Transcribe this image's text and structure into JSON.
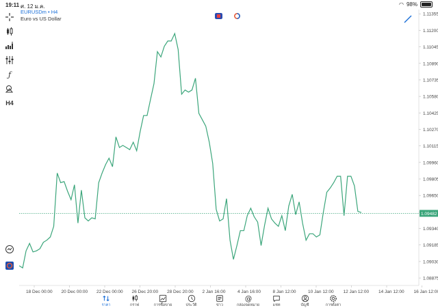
{
  "status_bar": {
    "time": "19:11",
    "date": "ศ. 12 ม.ค.",
    "battery": "98%"
  },
  "symbol": {
    "name": "EURUSDm",
    "timeframe": "H4",
    "description": "Euro vs US Dollar"
  },
  "left_toolbar": [
    {
      "name": "crosshair-icon"
    },
    {
      "name": "chart-type-icon"
    },
    {
      "name": "indicators-icon"
    },
    {
      "name": "settings-sliders-icon"
    },
    {
      "name": "function-icon"
    },
    {
      "name": "objects-icon"
    },
    {
      "name": "timeframe-button",
      "label": "H4"
    }
  ],
  "chart_data": {
    "type": "line",
    "color": "#3aa57a",
    "current_price_label": "1.09482",
    "current_price": 1.09482,
    "ylim": [
      1.08805,
      1.11395
    ],
    "yticks": [
      "1.11355",
      "1.11200",
      "1.11045",
      "1.10890",
      "1.10735",
      "1.10580",
      "1.10425",
      "1.10270",
      "1.10115",
      "1.09960",
      "1.09805",
      "1.09650",
      "1.09495",
      "1.09340",
      "1.09185",
      "1.09030",
      "1.08875"
    ],
    "xticks": [
      "18 Dec 00:00",
      "20 Dec 00:00",
      "22 Dec 00:00",
      "26 Dec 20:00",
      "28 Dec 20:00",
      "2 Jan 16:00",
      "4 Jan 16:00",
      "8 Jan 12:00",
      "10 Jan 12:00",
      "12 Jan 12:00",
      "14 Jan 12:00",
      "16 Jan 12:00"
    ],
    "values": [
      1.0899,
      1.0897,
      1.0913,
      1.092,
      1.0912,
      1.0913,
      1.0915,
      1.0921,
      1.0923,
      1.0926,
      1.0936,
      1.0986,
      1.0977,
      1.0978,
      1.0969,
      1.0961,
      1.0975,
      1.0939,
      1.097,
      1.0944,
      1.0941,
      1.0944,
      1.0943,
      1.0977,
      1.0986,
      1.0994,
      1.1,
      1.0992,
      1.102,
      1.101,
      1.1012,
      1.101,
      1.1008,
      1.1015,
      1.1007,
      1.1025,
      1.104,
      1.104,
      1.1055,
      1.107,
      1.11,
      1.1095,
      1.1105,
      1.111,
      1.111,
      1.1117,
      1.1102,
      1.106,
      1.1064,
      1.1062,
      1.1064,
      1.1075,
      1.1042,
      1.1036,
      1.103,
      1.1015,
      1.0995,
      1.0952,
      1.0941,
      1.0943,
      1.0962,
      1.0923,
      1.0905,
      1.0918,
      1.0932,
      1.0932,
      1.0946,
      1.0953,
      1.0945,
      1.094,
      1.0918,
      1.0937,
      1.0953,
      1.0943,
      1.0939,
      1.0936,
      1.0946,
      1.0932,
      1.0955,
      1.0966,
      1.0947,
      1.0959,
      1.0939,
      1.0923,
      1.0929,
      1.0929,
      1.0926,
      1.0928,
      1.0949,
      1.0968,
      1.0972,
      1.0977,
      1.0983,
      1.0983,
      1.0946,
      1.0983,
      1.0983,
      1.0974,
      1.095,
      1.0949
    ]
  },
  "nav": [
    {
      "label": "ราคา",
      "icon": "quotes-icon",
      "active": true
    },
    {
      "label": "กราฟ",
      "icon": "chart-candles-icon"
    },
    {
      "label": "การซื้อขาย",
      "icon": "trade-icon"
    },
    {
      "label": "ประวัติ",
      "icon": "history-icon"
    },
    {
      "label": "ข่าว",
      "icon": "news-icon"
    },
    {
      "label": "กล่องจดหมาย",
      "icon": "mailbox-icon"
    },
    {
      "label": "แชท",
      "icon": "chat-icon"
    },
    {
      "label": "บัญชี",
      "icon": "account-icon"
    },
    {
      "label": "การตั้งค่า",
      "icon": "settings-icon"
    }
  ]
}
